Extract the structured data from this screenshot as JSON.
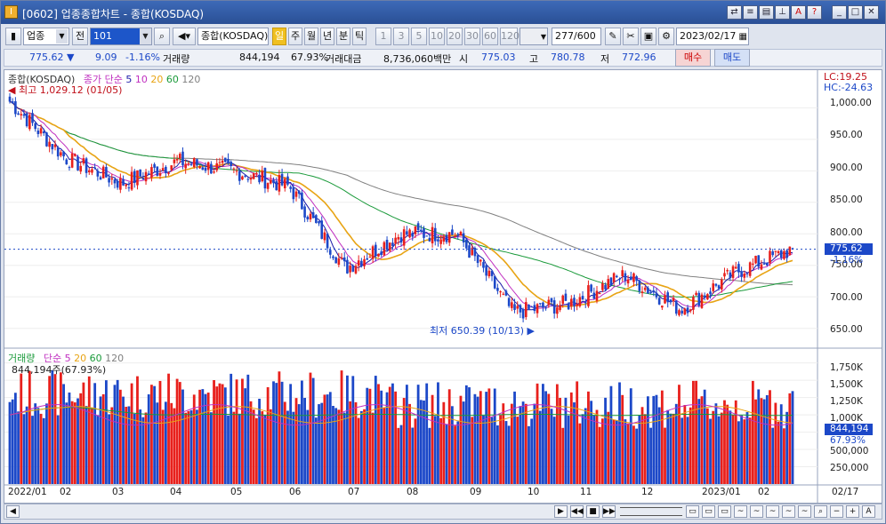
{
  "window": {
    "title": "[0602] 업종종합차트 - 종합(KOSDAQ)"
  },
  "toolbar": {
    "category": "업종",
    "prev_label": "전",
    "code": "101",
    "index_name": "종합(KOSDAQ)",
    "periods": [
      "일",
      "주",
      "월",
      "년",
      "분",
      "틱"
    ],
    "intervals": [
      "1",
      "3",
      "5",
      "10",
      "20",
      "30",
      "60",
      "120"
    ],
    "count": "277",
    "count_total": "/600",
    "date": "2023/02/17"
  },
  "infobar": {
    "price": "775.62",
    "arrow": "▼",
    "change": "9.09",
    "change_pct": "-1.16%",
    "volume_label": "거래량",
    "volume": "844,194",
    "volume_pct": "67.93%",
    "amount_label": "거래대금",
    "amount": "8,736,060백만",
    "open_label": "시",
    "open": "775.03",
    "high_label": "고",
    "high": "780.78",
    "low_label": "저",
    "low": "772.96",
    "buy_label": "매수",
    "sell_label": "매도"
  },
  "price_panel": {
    "title": "종합(KOSDAQ)",
    "ma_label": "종가 단순",
    "ma_periods": [
      "5",
      "10",
      "20",
      "60",
      "120"
    ],
    "lc": "LC:19.25",
    "hc": "HC:-24.63",
    "high_note": "최고 1,029.12 (01/05)",
    "low_note": "최저 650.39 (10/13)",
    "last_tag": "775.62",
    "last_pct": "-1.16%",
    "y_ticks": [
      "1,000.00",
      "950.00",
      "900.00",
      "850.00",
      "800.00",
      "750.00",
      "700.00",
      "650.00"
    ]
  },
  "volume_panel": {
    "title": "거래량",
    "ma_label": "단순",
    "ma_periods": [
      "5",
      "20",
      "60",
      "120"
    ],
    "current": "844,194주(67.93%)",
    "last_tag": "844,194",
    "last_pct": "67.93%",
    "y_ticks": [
      "1,750K",
      "1,500K",
      "1,250K",
      "1,000K",
      "750,000",
      "500,000",
      "250,000"
    ]
  },
  "x_axis": [
    "2022/01",
    "02",
    "03",
    "04",
    "05",
    "06",
    "07",
    "08",
    "09",
    "10",
    "11",
    "12",
    "2023/01",
    "02",
    "02/17"
  ],
  "colors": {
    "up": "#e8201c",
    "down": "#1c48c8",
    "ma5": "#1a1aa8",
    "ma10": "#c030c0",
    "ma20": "#e8a414",
    "ma60": "#1a9a3a",
    "ma120": "#808080"
  },
  "chart_data": {
    "type": "candlestick",
    "title": "종합(KOSDAQ)",
    "period": "daily",
    "y_range": [
      620,
      1040
    ],
    "monthly_close": [
      {
        "month": "2022/01",
        "value": 920
      },
      {
        "month": "2022/02",
        "value": 880
      },
      {
        "month": "2022/03",
        "value": 915
      },
      {
        "month": "2022/04",
        "value": 900
      },
      {
        "month": "2022/05",
        "value": 875
      },
      {
        "month": "2022/06",
        "value": 745
      },
      {
        "month": "2022/07",
        "value": 800
      },
      {
        "month": "2022/08",
        "value": 800
      },
      {
        "month": "2022/09",
        "value": 675
      },
      {
        "month": "2022/10",
        "value": 690
      },
      {
        "month": "2022/11",
        "value": 735
      },
      {
        "month": "2022/12",
        "value": 680
      },
      {
        "month": "2023/01",
        "value": 740
      },
      {
        "month": "2023/02",
        "value": 775.62
      }
    ],
    "extremes": {
      "high": 1029.12,
      "high_date": "01/05",
      "low": 650.39,
      "low_date": "10/13"
    },
    "last": {
      "open": 775.03,
      "high": 780.78,
      "low": 772.96,
      "close": 775.62
    },
    "volume_range": [
      0,
      1900000
    ]
  }
}
